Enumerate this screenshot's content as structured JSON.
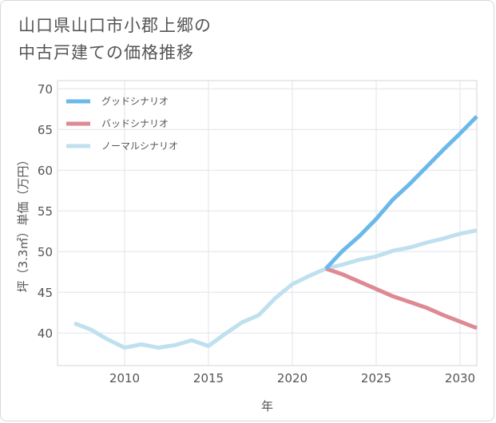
{
  "title": "山口県山口市小郡上郷の\n中古戸建ての価格推移",
  "chart_data": {
    "type": "line",
    "xlabel": "年",
    "ylabel": "坪（3.3㎡）単価（万円）",
    "xlim": [
      2006,
      2031
    ],
    "ylim": [
      36,
      71
    ],
    "x_ticks": [
      2010,
      2015,
      2020,
      2025,
      2030
    ],
    "y_ticks": [
      40,
      45,
      50,
      55,
      60,
      65,
      70
    ],
    "grid": true,
    "legend_position": "top-left",
    "series": [
      {
        "name": "グッドシナリオ",
        "color": "#6bb8ea",
        "x": [
          2022,
          2023,
          2024,
          2025,
          2026,
          2027,
          2028,
          2029,
          2030,
          2031
        ],
        "y": [
          47.9,
          50.1,
          51.9,
          54.0,
          56.4,
          58.3,
          60.4,
          62.5,
          64.5,
          66.6
        ]
      },
      {
        "name": "バッドシナリオ",
        "color": "#de8a94",
        "x": [
          2022,
          2023,
          2024,
          2025,
          2026,
          2027,
          2028,
          2029,
          2030,
          2031
        ],
        "y": [
          47.9,
          47.2,
          46.3,
          45.4,
          44.5,
          43.8,
          43.1,
          42.2,
          41.4,
          40.6
        ]
      },
      {
        "name": "ノーマルシナリオ",
        "color": "#bfe0ef",
        "x": [
          2007,
          2008,
          2009,
          2010,
          2011,
          2012,
          2013,
          2014,
          2015,
          2016,
          2017,
          2018,
          2019,
          2020,
          2021,
          2022,
          2023,
          2024,
          2025,
          2026,
          2027,
          2028,
          2029,
          2030,
          2031
        ],
        "y": [
          41.2,
          40.4,
          39.2,
          38.2,
          38.6,
          38.2,
          38.5,
          39.1,
          38.4,
          39.9,
          41.3,
          42.2,
          44.3,
          46.0,
          47.0,
          47.9,
          48.4,
          49.0,
          49.4,
          50.1,
          50.5,
          51.1,
          51.6,
          52.2,
          52.6
        ]
      }
    ]
  }
}
